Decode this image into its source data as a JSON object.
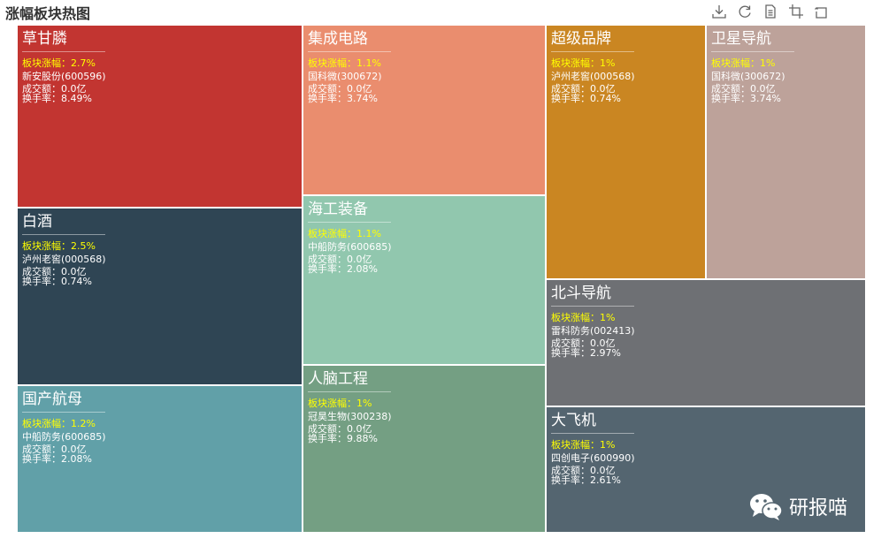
{
  "title": "涨幅板块热图",
  "toolbox": [
    {
      "name": "download-icon",
      "tooltip": "保存为图片"
    },
    {
      "name": "refresh-icon",
      "tooltip": "还原"
    },
    {
      "name": "data-view-icon",
      "tooltip": "数据视图"
    },
    {
      "name": "crop-icon",
      "tooltip": "区域缩放"
    },
    {
      "name": "undo-icon",
      "tooltip": "区域缩放还原"
    }
  ],
  "chart_data": {
    "type": "treemap",
    "title": "涨幅板块热图",
    "metric_label": "板块涨幅",
    "nodes": [
      {
        "name": "草甘膦",
        "gain_text": "板块涨幅：2.7%",
        "gain": 2.7,
        "stock": "新安股份(600596)",
        "volume_text": "成交额：0.0亿",
        "turnover_text": "换手率：8.49%",
        "color": "#c23531"
      },
      {
        "name": "白酒",
        "gain_text": "板块涨幅：2.5%",
        "gain": 2.5,
        "stock": "泸州老窖(000568)",
        "volume_text": "成交额：0.0亿",
        "turnover_text": "换手率：0.74%",
        "color": "#2f4554"
      },
      {
        "name": "国产航母",
        "gain_text": "板块涨幅：1.2%",
        "gain": 1.2,
        "stock": "中船防务(600685)",
        "volume_text": "成交额：0.0亿",
        "turnover_text": "换手率：2.08%",
        "color": "#61a0a8"
      },
      {
        "name": "集成电路",
        "gain_text": "板块涨幅：1.1%",
        "gain": 1.1,
        "stock": "国科微(300672)",
        "volume_text": "成交额：0.0亿",
        "turnover_text": "换手率：3.74%",
        "color": "#ea8d6e"
      },
      {
        "name": "海工装备",
        "gain_text": "板块涨幅：1.1%",
        "gain": 1.1,
        "stock": "中船防务(600685)",
        "volume_text": "成交额：0.0亿",
        "turnover_text": "换手率：2.08%",
        "color": "#91c7ae"
      },
      {
        "name": "人脑工程",
        "gain_text": "板块涨幅：1%",
        "gain": 1,
        "stock": "冠昊生物(300238)",
        "volume_text": "成交额：0.0亿",
        "turnover_text": "换手率：9.88%",
        "color": "#749f83"
      },
      {
        "name": "超级品牌",
        "gain_text": "板块涨幅：1%",
        "gain": 1,
        "stock": "泸州老窖(000568)",
        "volume_text": "成交额：0.0亿",
        "turnover_text": "换手率：0.74%",
        "color": "#ca8622"
      },
      {
        "name": "卫星导航",
        "gain_text": "板块涨幅：1%",
        "gain": 1,
        "stock": "国科微(300672)",
        "volume_text": "成交额：0.0亿",
        "turnover_text": "换手率：3.74%",
        "color": "#bda29a"
      },
      {
        "name": "北斗导航",
        "gain_text": "板块涨幅：1%",
        "gain": 1,
        "stock": "雷科防务(002413)",
        "volume_text": "成交额：0.0亿",
        "turnover_text": "换手率：2.97%",
        "color": "#6e7074"
      },
      {
        "name": "大飞机",
        "gain_text": "板块涨幅：1%",
        "gain": 1,
        "stock": "四创电子(600990)",
        "volume_text": "成交额：0.0亿",
        "turnover_text": "换手率：2.61%",
        "color": "#546570"
      }
    ]
  },
  "watermark": {
    "text": "研报喵",
    "icon": "wechat-icon"
  }
}
